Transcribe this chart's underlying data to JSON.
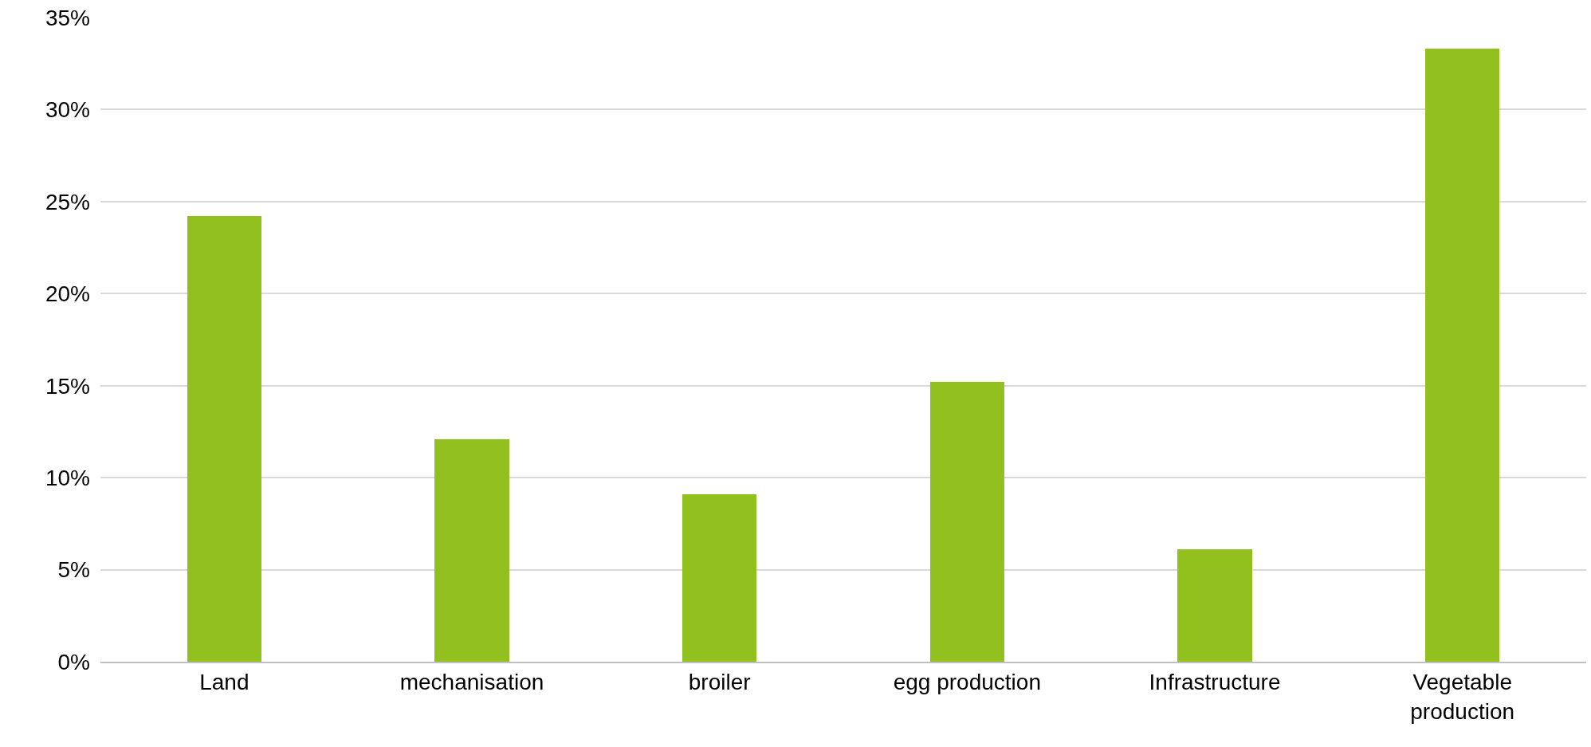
{
  "chart_data": {
    "type": "bar",
    "categories": [
      "Land",
      "mechanisation",
      "broiler",
      "egg production",
      "Infrastructure",
      "Vegetable production"
    ],
    "values": [
      24.2,
      12.1,
      9.1,
      15.2,
      6.1,
      33.3
    ],
    "color": "#92c11f",
    "ylim": [
      0,
      35
    ],
    "yticks": [
      {
        "value": 0,
        "label": "0%"
      },
      {
        "value": 5,
        "label": "5%"
      },
      {
        "value": 10,
        "label": "10%"
      },
      {
        "value": 15,
        "label": "15%"
      },
      {
        "value": 20,
        "label": "20%"
      },
      {
        "value": 25,
        "label": "25%"
      },
      {
        "value": 30,
        "label": "30%"
      },
      {
        "value": 35,
        "label": "35%"
      }
    ],
    "grid": "y"
  }
}
